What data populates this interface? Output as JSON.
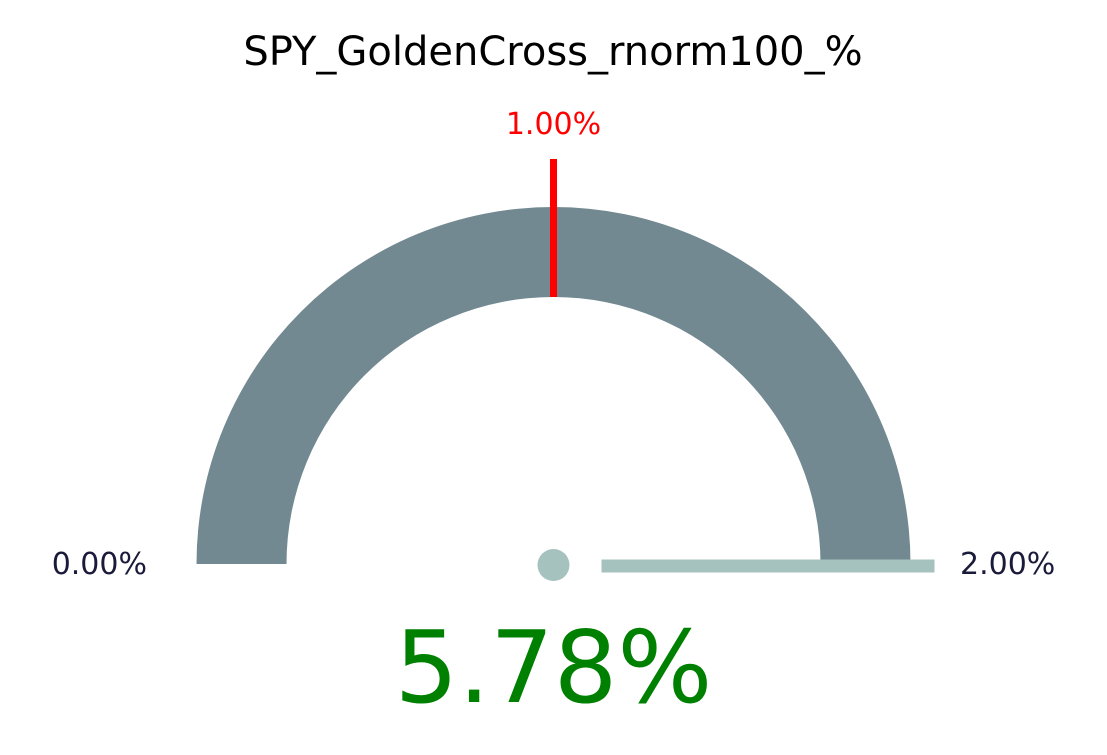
{
  "chart_data": {
    "type": "gauge",
    "title": "SPY_GoldenCross_rnorm100_%",
    "min": 0.0,
    "max": 2.0,
    "min_label": "0.00%",
    "max_label": "2.00%",
    "target": 1.0,
    "target_label": "1.00%",
    "value": 5.78,
    "value_label": "5.78%",
    "colors": {
      "arc": "#728991",
      "target": "#ff0000",
      "needle": "#a5c2be",
      "value": "#008000",
      "tick_labels": "#1a1a3a"
    }
  }
}
